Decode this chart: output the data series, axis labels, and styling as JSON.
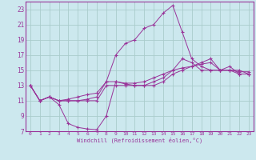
{
  "xlabel": "Windchill (Refroidissement éolien,°C)",
  "background_color": "#cce8ee",
  "grid_color": "#aacccc",
  "line_color": "#993399",
  "xlim": [
    -0.5,
    23.5
  ],
  "ylim": [
    7,
    24
  ],
  "xticks": [
    0,
    1,
    2,
    3,
    4,
    5,
    6,
    7,
    8,
    9,
    10,
    11,
    12,
    13,
    14,
    15,
    16,
    17,
    18,
    19,
    20,
    21,
    22,
    23
  ],
  "yticks": [
    7,
    9,
    11,
    13,
    15,
    17,
    19,
    21,
    23
  ],
  "hours": [
    0,
    1,
    2,
    3,
    4,
    5,
    6,
    7,
    8,
    9,
    10,
    11,
    12,
    13,
    14,
    15,
    16,
    17,
    18,
    19,
    20,
    21,
    22,
    23
  ],
  "line_upper": [
    13.0,
    11.0,
    11.5,
    11.0,
    11.0,
    11.0,
    11.2,
    11.5,
    13.5,
    17.0,
    18.5,
    19.0,
    20.5,
    21.0,
    22.5,
    23.5,
    20.0,
    16.5,
    15.5,
    15.0,
    15.0,
    15.0,
    15.0,
    14.5
  ],
  "line_mid1": [
    13.0,
    11.0,
    11.5,
    11.0,
    11.2,
    11.5,
    11.8,
    12.0,
    13.5,
    13.5,
    13.3,
    13.3,
    13.5,
    14.0,
    14.5,
    15.0,
    15.3,
    15.5,
    15.8,
    16.0,
    15.0,
    15.0,
    14.8,
    14.8
  ],
  "line_mid2": [
    13.0,
    11.0,
    11.5,
    11.0,
    11.0,
    11.0,
    11.0,
    11.0,
    13.0,
    13.0,
    13.0,
    13.0,
    13.0,
    13.0,
    13.5,
    14.5,
    15.0,
    15.5,
    16.0,
    16.5,
    15.0,
    15.0,
    14.5,
    14.5
  ],
  "line_lower": [
    13.0,
    11.0,
    11.5,
    10.5,
    8.0,
    7.5,
    7.3,
    7.2,
    9.0,
    13.5,
    13.2,
    13.0,
    13.0,
    13.5,
    14.0,
    15.0,
    16.5,
    16.0,
    15.0,
    15.0,
    15.0,
    15.5,
    14.5,
    14.5
  ]
}
